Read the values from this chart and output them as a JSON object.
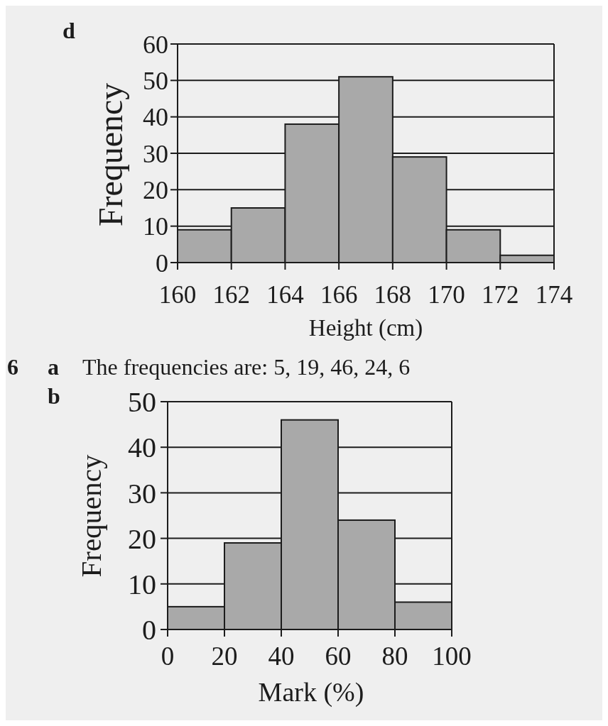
{
  "chart_data": [
    {
      "type": "histogram",
      "annotations": [
        "d"
      ],
      "xlabel": "Height (cm)",
      "ylabel": "Frequency",
      "bins": [
        160,
        162,
        164,
        166,
        168,
        170,
        172,
        174
      ],
      "values": [
        9,
        15,
        38,
        51,
        29,
        9,
        2
      ],
      "color": "#a9a9a9",
      "xlim": [
        160,
        174
      ],
      "xticks": [
        160,
        162,
        164,
        166,
        168,
        170,
        172,
        174
      ],
      "ylim": [
        0,
        60
      ],
      "yticks": [
        0,
        10,
        20,
        30,
        40,
        50,
        60
      ],
      "grid": "y"
    },
    {
      "type": "histogram",
      "annotations": [
        "6",
        "a",
        "The frequencies are: 5, 19, 46, 24, 6",
        "b"
      ],
      "xlabel": "Mark (%)",
      "ylabel": "Frequency",
      "bins": [
        0,
        20,
        40,
        60,
        80,
        100
      ],
      "values": [
        5,
        19,
        46,
        24,
        6
      ],
      "color": "#a9a9a9",
      "xlim": [
        0,
        100
      ],
      "xticks": [
        0,
        20,
        40,
        60,
        80,
        100
      ],
      "ylim": [
        0,
        50
      ],
      "yticks": [
        0,
        10,
        20,
        30,
        40,
        50
      ],
      "grid": "y"
    }
  ]
}
